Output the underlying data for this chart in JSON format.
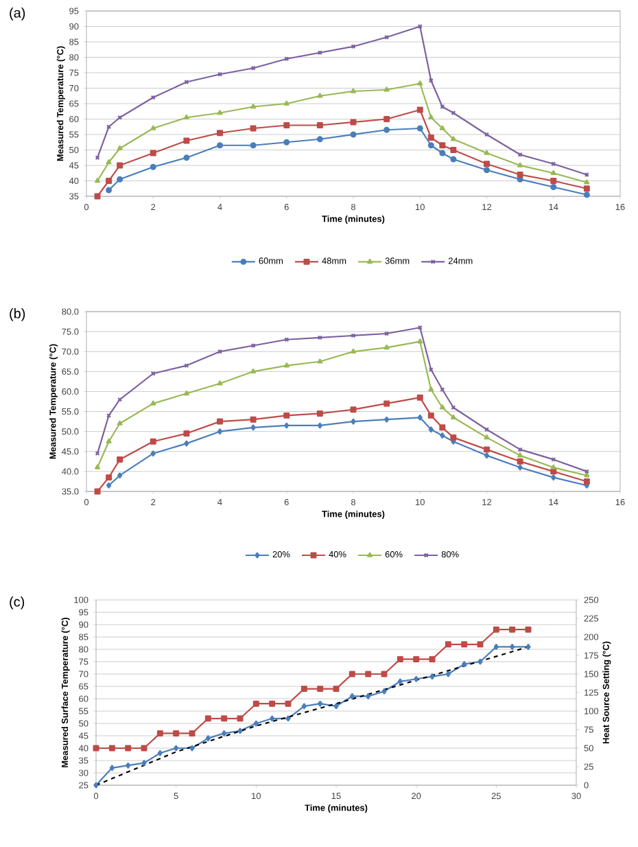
{
  "chart_data": [
    {
      "type": "line",
      "title": "(a)",
      "xlabel": "Time (minutes)",
      "ylabel": "Measured Temperature (°C)",
      "x": [
        0.33,
        0.67,
        1,
        2,
        3,
        4,
        5,
        6,
        7,
        8,
        9,
        10,
        10.33,
        10.67,
        11,
        12,
        13,
        14,
        15
      ],
      "series": [
        {
          "name": "60mm",
          "color": "#4a7ebb",
          "marker": "circle",
          "values": [
            null,
            37,
            40.5,
            44.5,
            47.5,
            51.5,
            51.5,
            52.5,
            53.5,
            55,
            56.5,
            57,
            51.5,
            49,
            47,
            43.5,
            40.5,
            38,
            35.5
          ]
        },
        {
          "name": "48mm",
          "color": "#be4b48",
          "marker": "square",
          "values": [
            35,
            40,
            45,
            49,
            53,
            55.5,
            57,
            58,
            58,
            59,
            60,
            63,
            54,
            51.5,
            50,
            45.5,
            42,
            40,
            37.5
          ]
        },
        {
          "name": "36mm",
          "color": "#98b954",
          "marker": "triangle",
          "values": [
            40,
            46,
            50.5,
            57,
            60.5,
            62,
            64,
            65,
            67.5,
            69,
            69.5,
            71.5,
            60.5,
            57,
            53.5,
            49,
            45,
            42.5,
            39.5
          ]
        },
        {
          "name": "24mm",
          "color": "#7d60a0",
          "marker": "cross",
          "values": [
            47.5,
            57.5,
            60.5,
            67,
            72,
            74.5,
            76.5,
            79.5,
            81.5,
            83.5,
            86.5,
            90,
            72.5,
            64,
            62,
            55,
            48.5,
            45.5,
            42
          ]
        }
      ],
      "xlim": [
        0,
        16
      ],
      "xticks": [
        0,
        2,
        4,
        6,
        8,
        10,
        12,
        14,
        16
      ],
      "ylim": [
        35,
        95
      ],
      "yticks": [
        35,
        40,
        45,
        50,
        55,
        60,
        65,
        70,
        75,
        80,
        85,
        90,
        95
      ],
      "grid": "y",
      "legend": "bottom"
    },
    {
      "type": "line",
      "title": "(b)",
      "xlabel": "Time (minutes)",
      "ylabel": "Measured Temperature (°C)",
      "x": [
        0.33,
        0.67,
        1,
        2,
        3,
        4,
        5,
        6,
        7,
        8,
        9,
        10,
        10.33,
        10.67,
        11,
        12,
        13,
        14,
        15
      ],
      "series": [
        {
          "name": "20%",
          "color": "#4a7ebb",
          "marker": "diamond",
          "values": [
            null,
            36.5,
            39,
            44.5,
            47,
            50,
            51,
            51.5,
            51.5,
            52.5,
            53,
            53.5,
            50.5,
            49,
            47.5,
            44,
            41,
            38.5,
            36.5
          ]
        },
        {
          "name": "40%",
          "color": "#be4b48",
          "marker": "square",
          "values": [
            35,
            38.5,
            43,
            47.5,
            49.5,
            52.5,
            53,
            54,
            54.5,
            55.5,
            57,
            58.5,
            54,
            51,
            48.5,
            45.5,
            42.5,
            40,
            37.5
          ]
        },
        {
          "name": "60%",
          "color": "#98b954",
          "marker": "triangle",
          "values": [
            41,
            47.5,
            52,
            57,
            59.5,
            62,
            65,
            66.5,
            67.5,
            70,
            71,
            72.5,
            60.5,
            56,
            53.5,
            48.5,
            44,
            41,
            39
          ]
        },
        {
          "name": "80%",
          "color": "#7d60a0",
          "marker": "cross",
          "values": [
            44.5,
            54,
            58,
            64.5,
            66.5,
            70,
            71.5,
            73,
            73.5,
            74,
            74.5,
            76,
            65.5,
            60.5,
            56,
            50.5,
            45.5,
            43,
            40
          ]
        }
      ],
      "xlim": [
        0,
        16
      ],
      "xticks": [
        0,
        2,
        4,
        6,
        8,
        10,
        12,
        14,
        16
      ],
      "ylim": [
        35,
        80
      ],
      "yticks": [
        {
          "value": 35,
          "label": "35.0"
        },
        {
          "value": 40,
          "label": "40.0"
        },
        {
          "value": 45,
          "label": "45.0"
        },
        {
          "value": 50,
          "label": "50.0"
        },
        {
          "value": 55,
          "label": "55.0"
        },
        {
          "value": 60,
          "label": "60.0"
        },
        {
          "value": 65,
          "label": "65.0"
        },
        {
          "value": 70,
          "label": "70.0"
        },
        {
          "value": 75,
          "label": "75.0"
        },
        {
          "value": 80,
          "label": "80.0"
        }
      ],
      "grid": "y",
      "legend": "bottom"
    },
    {
      "type": "line",
      "title": "(c)",
      "xlabel": "Time (minutes)",
      "ylabel": "Measured Surface Temperature (°C)",
      "y2label": "Heat Source Setting (°C)",
      "x": [
        0,
        1,
        2,
        3,
        4,
        5,
        6,
        7,
        8,
        9,
        10,
        11,
        12,
        13,
        14,
        15,
        16,
        17,
        18,
        19,
        20,
        21,
        22,
        23,
        24,
        25,
        26,
        27
      ],
      "series": [
        {
          "color": "#4a7ebb",
          "marker": "diamond",
          "values": [
            25,
            32,
            33,
            34,
            38,
            40,
            40,
            44,
            46,
            47,
            50,
            52,
            52,
            57,
            58,
            57,
            61,
            61,
            63,
            67,
            68,
            69,
            70,
            74,
            75,
            81,
            81,
            81
          ]
        },
        {
          "color": "#be4b48",
          "marker": "square",
          "axis": "y2",
          "values": [
            50,
            50,
            50,
            50,
            70,
            70,
            70,
            90,
            90,
            90,
            110,
            110,
            110,
            130,
            130,
            130,
            150,
            150,
            150,
            170,
            170,
            170,
            190,
            190,
            190,
            210,
            210,
            210
          ]
        },
        {
          "type": "line",
          "color": "#000000",
          "marker": "none",
          "line_style": "dashed",
          "x": [
            0,
            5,
            10,
            15,
            20,
            27
          ],
          "values": [
            25,
            38.5,
            49,
            58,
            67.5,
            81
          ]
        }
      ],
      "xlim": [
        0,
        30
      ],
      "xticks": [
        0,
        5,
        10,
        15,
        20,
        25,
        30
      ],
      "ylim": [
        25,
        100
      ],
      "yticks": [
        25,
        30,
        35,
        40,
        45,
        50,
        55,
        60,
        65,
        70,
        75,
        80,
        85,
        90,
        95,
        100
      ],
      "y2lim": [
        0,
        250
      ],
      "y2ticks": [
        0,
        25,
        50,
        75,
        100,
        125,
        150,
        175,
        200,
        225,
        250
      ],
      "grid": "y"
    }
  ]
}
